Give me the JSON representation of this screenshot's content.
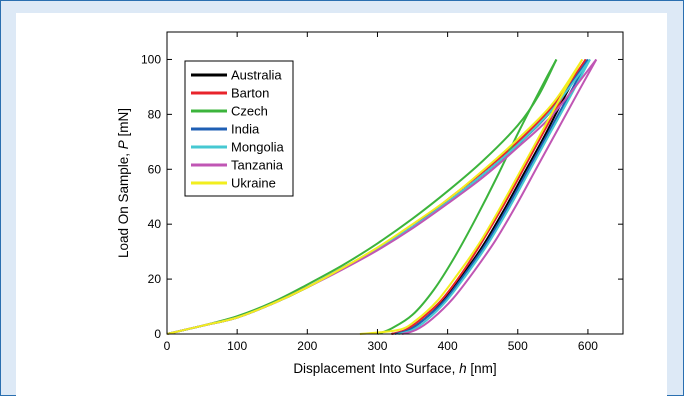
{
  "chart_data": {
    "type": "line",
    "title": "",
    "xlabel": "Displacement Into Surface, h [nm]",
    "xlabel_parts": {
      "before": "Displacement Into Surface, ",
      "var": "h",
      "after": " [nm]"
    },
    "ylabel": "Load On Sample, P [mN]",
    "ylabel_parts": {
      "before": "Load On Sample, ",
      "var": "P",
      "after": " [mN]"
    },
    "xlim": [
      0,
      650
    ],
    "ylim": [
      0,
      110
    ],
    "xticks": [
      0,
      100,
      200,
      300,
      400,
      500,
      600
    ],
    "yticks": [
      0,
      20,
      40,
      60,
      80,
      100
    ],
    "grid": false,
    "legend_position": "top-left",
    "series": [
      {
        "name": "Australia",
        "color": "#000000",
        "loading": [
          [
            0,
            0
          ],
          [
            50,
            3
          ],
          [
            100,
            6
          ],
          [
            150,
            11
          ],
          [
            200,
            17
          ],
          [
            250,
            24
          ],
          [
            300,
            31
          ],
          [
            350,
            39
          ],
          [
            400,
            48
          ],
          [
            450,
            58
          ],
          [
            500,
            69
          ],
          [
            550,
            82
          ],
          [
            597,
            100
          ]
        ],
        "unloading": [
          [
            597,
            100
          ],
          [
            570,
            88
          ],
          [
            540,
            73
          ],
          [
            510,
            59
          ],
          [
            480,
            45
          ],
          [
            450,
            32
          ],
          [
            420,
            21
          ],
          [
            390,
            11
          ],
          [
            360,
            4
          ],
          [
            340,
            1
          ],
          [
            320,
            0
          ]
        ]
      },
      {
        "name": "Barton",
        "color": "#e8242b",
        "loading": [
          [
            0,
            0
          ],
          [
            50,
            3
          ],
          [
            100,
            6
          ],
          [
            150,
            11
          ],
          [
            200,
            17
          ],
          [
            250,
            24
          ],
          [
            300,
            31
          ],
          [
            350,
            39
          ],
          [
            400,
            49
          ],
          [
            450,
            59
          ],
          [
            500,
            70
          ],
          [
            550,
            83
          ],
          [
            597,
            100
          ]
        ],
        "unloading": [
          [
            597,
            100
          ],
          [
            570,
            89
          ],
          [
            540,
            75
          ],
          [
            510,
            61
          ],
          [
            480,
            47
          ],
          [
            450,
            34
          ],
          [
            420,
            22
          ],
          [
            390,
            12
          ],
          [
            360,
            5
          ],
          [
            340,
            1.5
          ],
          [
            320,
            0
          ]
        ]
      },
      {
        "name": "Czech",
        "color": "#3cb43c",
        "loading": [
          [
            0,
            0
          ],
          [
            50,
            3
          ],
          [
            100,
            6.5
          ],
          [
            150,
            11.5
          ],
          [
            200,
            18
          ],
          [
            250,
            25
          ],
          [
            300,
            33
          ],
          [
            350,
            42
          ],
          [
            400,
            52
          ],
          [
            450,
            63
          ],
          [
            500,
            76
          ],
          [
            530,
            87
          ],
          [
            555,
            100
          ]
        ],
        "unloading": [
          [
            555,
            100
          ],
          [
            530,
            88
          ],
          [
            500,
            73
          ],
          [
            470,
            57
          ],
          [
            440,
            42
          ],
          [
            410,
            28
          ],
          [
            380,
            16
          ],
          [
            350,
            7
          ],
          [
            320,
            2
          ],
          [
            300,
            0
          ]
        ]
      },
      {
        "name": "India",
        "color": "#1f5fb4",
        "loading": [
          [
            0,
            0
          ],
          [
            50,
            3
          ],
          [
            100,
            6
          ],
          [
            150,
            11
          ],
          [
            200,
            17
          ],
          [
            250,
            24
          ],
          [
            300,
            31
          ],
          [
            350,
            39
          ],
          [
            400,
            48
          ],
          [
            450,
            58
          ],
          [
            500,
            69
          ],
          [
            550,
            82
          ],
          [
            600,
            100
          ]
        ],
        "unloading": [
          [
            600,
            100
          ],
          [
            575,
            88
          ],
          [
            545,
            74
          ],
          [
            515,
            60
          ],
          [
            485,
            46
          ],
          [
            455,
            33
          ],
          [
            425,
            22
          ],
          [
            395,
            12
          ],
          [
            365,
            5
          ],
          [
            345,
            1.5
          ],
          [
            325,
            0
          ]
        ]
      },
      {
        "name": "Mongolia",
        "color": "#46c8d2",
        "loading": [
          [
            0,
            0
          ],
          [
            50,
            3
          ],
          [
            100,
            6
          ],
          [
            150,
            11
          ],
          [
            200,
            17
          ],
          [
            250,
            24
          ],
          [
            300,
            31
          ],
          [
            350,
            39
          ],
          [
            400,
            48
          ],
          [
            450,
            58
          ],
          [
            500,
            69
          ],
          [
            550,
            82
          ],
          [
            603,
            100
          ]
        ],
        "unloading": [
          [
            603,
            100
          ],
          [
            578,
            88
          ],
          [
            548,
            74
          ],
          [
            518,
            60
          ],
          [
            488,
            46
          ],
          [
            458,
            33
          ],
          [
            428,
            22
          ],
          [
            398,
            12
          ],
          [
            370,
            5
          ],
          [
            350,
            1.5
          ],
          [
            330,
            0
          ]
        ]
      },
      {
        "name": "Tanzania",
        "color": "#c056b4",
        "loading": [
          [
            0,
            0
          ],
          [
            50,
            3
          ],
          [
            100,
            6
          ],
          [
            150,
            11
          ],
          [
            200,
            17
          ],
          [
            250,
            23.5
          ],
          [
            300,
            30.5
          ],
          [
            350,
            38.5
          ],
          [
            400,
            47.5
          ],
          [
            450,
            57
          ],
          [
            500,
            68
          ],
          [
            550,
            80
          ],
          [
            612,
            100
          ]
        ],
        "unloading": [
          [
            612,
            100
          ],
          [
            588,
            89
          ],
          [
            558,
            75
          ],
          [
            528,
            61
          ],
          [
            498,
            47
          ],
          [
            468,
            34
          ],
          [
            438,
            23
          ],
          [
            408,
            13
          ],
          [
            378,
            5.5
          ],
          [
            355,
            1.5
          ],
          [
            335,
            0
          ]
        ]
      },
      {
        "name": "Ukraine",
        "color": "#f2ee1e",
        "loading": [
          [
            0,
            0
          ],
          [
            50,
            3
          ],
          [
            100,
            6
          ],
          [
            150,
            11
          ],
          [
            200,
            17
          ],
          [
            250,
            24
          ],
          [
            300,
            31.5
          ],
          [
            350,
            40
          ],
          [
            400,
            49
          ],
          [
            450,
            59.5
          ],
          [
            500,
            71
          ],
          [
            550,
            84
          ],
          [
            592,
            100
          ]
        ],
        "unloading": [
          [
            592,
            100
          ],
          [
            565,
            88
          ],
          [
            535,
            74
          ],
          [
            505,
            60
          ],
          [
            475,
            46
          ],
          [
            445,
            33
          ],
          [
            415,
            22
          ],
          [
            385,
            12
          ],
          [
            355,
            5
          ],
          [
            330,
            1.5
          ],
          [
            275,
            0
          ]
        ]
      }
    ]
  }
}
